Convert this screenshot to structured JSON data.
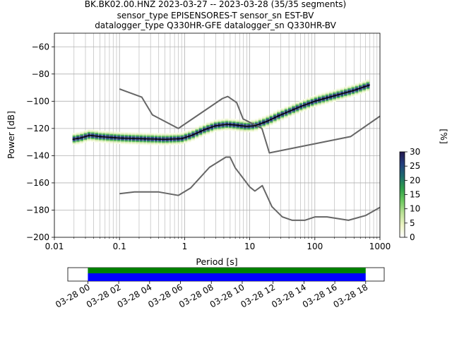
{
  "chart_data": {
    "type": "heatmap",
    "title_lines": [
      "BK.BK02.00.HNZ   2023-03-27 -- 2023-03-28  (35/35 segments)",
      "sensor_type EPISENSORES-T sensor_sn EST-BV",
      "datalogger_type Q330HR-GFE datalogger_sn Q330HR-BV"
    ],
    "xlabel": "Period [s]",
    "ylabel": "Power [dB]",
    "x_scale": "log",
    "xlim": [
      0.01,
      1000
    ],
    "ylim": [
      -200,
      -50
    ],
    "x_ticks": [
      {
        "value": 0.01,
        "label": "0.01"
      },
      {
        "value": 0.1,
        "label": "0.1"
      },
      {
        "value": 1,
        "label": "1"
      },
      {
        "value": 10,
        "label": "10"
      },
      {
        "value": 100,
        "label": "100"
      },
      {
        "value": 1000,
        "label": "1000"
      }
    ],
    "y_ticks": [
      {
        "value": -60,
        "label": "−60"
      },
      {
        "value": -80,
        "label": "−80"
      },
      {
        "value": -100,
        "label": "−100"
      },
      {
        "value": -120,
        "label": "−120"
      },
      {
        "value": -140,
        "label": "−140"
      },
      {
        "value": -160,
        "label": "−160"
      },
      {
        "value": -180,
        "label": "−180"
      },
      {
        "value": -200,
        "label": "−200"
      }
    ],
    "grid": true,
    "noise_models": [
      {
        "name": "NHNM",
        "color": "#666666",
        "points": [
          [
            0.1,
            -91
          ],
          [
            0.22,
            -97
          ],
          [
            0.32,
            -110
          ],
          [
            0.8,
            -120
          ],
          [
            3.8,
            -98
          ],
          [
            4.6,
            -96.5
          ],
          [
            6.3,
            -101
          ],
          [
            7.9,
            -113
          ],
          [
            15.4,
            -120
          ],
          [
            20,
            -138
          ],
          [
            354,
            -126
          ],
          [
            1000,
            -111
          ]
        ]
      },
      {
        "name": "NLNM",
        "color": "#666666",
        "points": [
          [
            0.1,
            -168
          ],
          [
            0.17,
            -166.7
          ],
          [
            0.4,
            -166.7
          ],
          [
            0.8,
            -169.2
          ],
          [
            1.24,
            -163.7
          ],
          [
            2.4,
            -148.6
          ],
          [
            4.3,
            -141.1
          ],
          [
            5,
            -141.1
          ],
          [
            6,
            -149
          ],
          [
            10,
            -163
          ],
          [
            12,
            -166
          ],
          [
            15.6,
            -162
          ],
          [
            21.9,
            -177.5
          ],
          [
            31.6,
            -185
          ],
          [
            45,
            -187.5
          ],
          [
            70,
            -187.5
          ],
          [
            101,
            -185
          ],
          [
            154,
            -185
          ],
          [
            328,
            -187.5
          ],
          [
            600,
            -184
          ],
          [
            1000,
            -178
          ]
        ]
      }
    ],
    "mean_curve": {
      "color": "#000000",
      "points": [
        [
          0.019,
          -128
        ],
        [
          0.025,
          -127
        ],
        [
          0.035,
          -125
        ],
        [
          0.05,
          -126
        ],
        [
          0.1,
          -127
        ],
        [
          0.2,
          -127.5
        ],
        [
          0.5,
          -128
        ],
        [
          0.9,
          -127.5
        ],
        [
          1.3,
          -125
        ],
        [
          2,
          -121
        ],
        [
          3,
          -118
        ],
        [
          4.5,
          -117
        ],
        [
          6,
          -117.5
        ],
        [
          9,
          -118.5
        ],
        [
          12,
          -118
        ],
        [
          18,
          -115
        ],
        [
          30,
          -110
        ],
        [
          60,
          -104
        ],
        [
          100,
          -100
        ],
        [
          200,
          -96
        ],
        [
          400,
          -92
        ],
        [
          700,
          -88
        ]
      ]
    },
    "ppsd_band_spread_db": 6,
    "colorbar": {
      "label": "[%]",
      "min": 0,
      "max": 30,
      "ticks": [
        {
          "value": 0,
          "label": "0"
        },
        {
          "value": 5,
          "label": "5"
        },
        {
          "value": 10,
          "label": "10"
        },
        {
          "value": 15,
          "label": "15"
        },
        {
          "value": 20,
          "label": "20"
        },
        {
          "value": 25,
          "label": "25"
        },
        {
          "value": 30,
          "label": "30"
        }
      ],
      "colors": [
        "#ffffff",
        "#edf4c4",
        "#b9e095",
        "#6cc85f",
        "#2e9e4a",
        "#1d6b6e",
        "#233f7f",
        "#24194f"
      ]
    },
    "timeline": {
      "start_hour": -1.3,
      "end_hour": 19.2,
      "covered_start_hour": 0,
      "covered_end_hour": 18,
      "colors": {
        "data": "#0000ff",
        "used": "#008000"
      },
      "tick_labels": [
        {
          "hour": 0,
          "label": "03-28 00"
        },
        {
          "hour": 2,
          "label": "03-28 02"
        },
        {
          "hour": 4,
          "label": "03-28 04"
        },
        {
          "hour": 6,
          "label": "03-28 06"
        },
        {
          "hour": 8,
          "label": "03-28 08"
        },
        {
          "hour": 10,
          "label": "03-28 10"
        },
        {
          "hour": 12,
          "label": "03-28 12"
        },
        {
          "hour": 14,
          "label": "03-28 14"
        },
        {
          "hour": 16,
          "label": "03-28 16"
        },
        {
          "hour": 18,
          "label": "03-28 18"
        }
      ]
    }
  }
}
